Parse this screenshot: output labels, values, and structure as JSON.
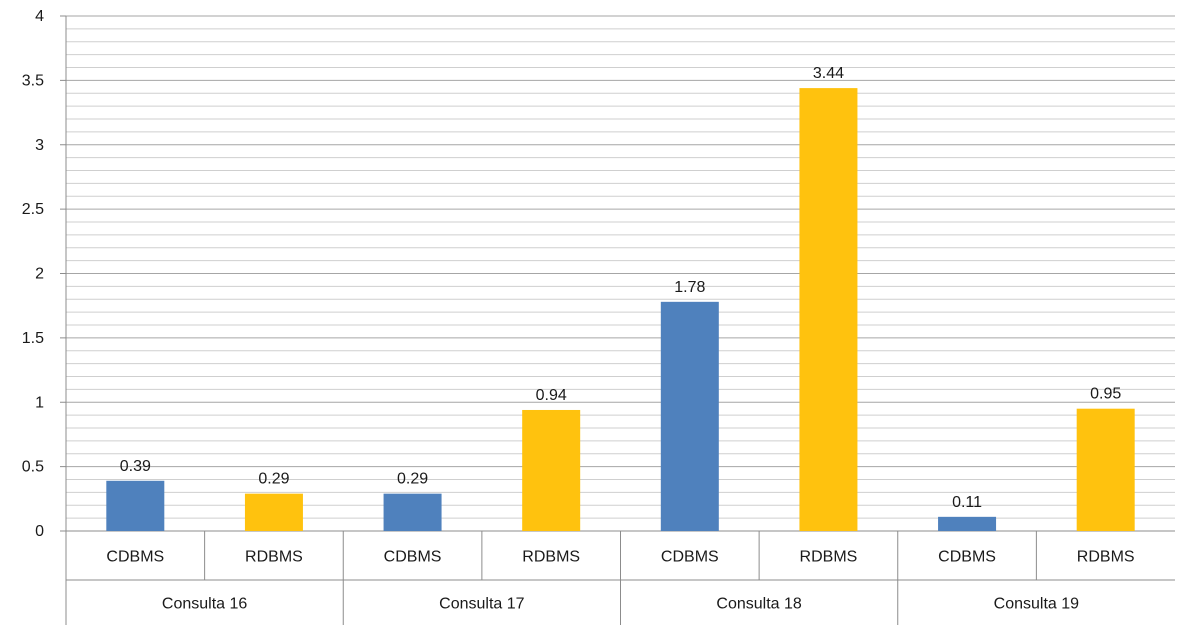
{
  "chart_data": {
    "type": "bar",
    "groups": [
      "Consulta 16",
      "Consulta 17",
      "Consulta 18",
      "Consulta 19"
    ],
    "categories": [
      "CDBMS",
      "RDBMS"
    ],
    "values": [
      [
        0.39,
        0.29
      ],
      [
        0.29,
        0.94
      ],
      [
        1.78,
        3.44
      ],
      [
        0.11,
        0.95
      ]
    ],
    "data_labels": [
      [
        "0.39",
        "0.29"
      ],
      [
        "0.29",
        "0.94"
      ],
      [
        "1.78",
        "3.44"
      ],
      [
        "0.11",
        "0.95"
      ]
    ],
    "colors": [
      "#4F81BD",
      "#FFC20E"
    ],
    "ylim": [
      0,
      4
    ],
    "yticks": [
      "0",
      "0.5",
      "1",
      "1.5",
      "2",
      "2.5",
      "3",
      "3.5",
      "4"
    ],
    "ytick_values": [
      0,
      0.5,
      1,
      1.5,
      2,
      2.5,
      3,
      3.5,
      4
    ],
    "minor_gridline_step": 0.1,
    "grid": true,
    "legend": "none",
    "title": "",
    "xlabel": "",
    "ylabel": ""
  }
}
